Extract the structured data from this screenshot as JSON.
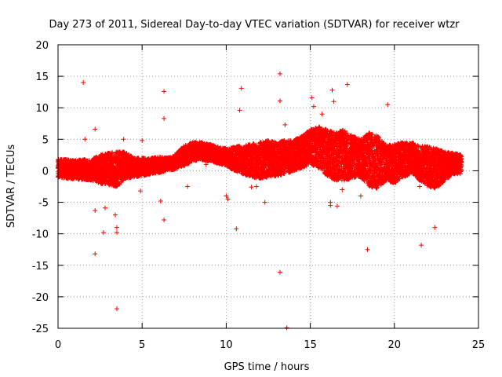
{
  "chart_data": {
    "type": "scatter",
    "title": "Day 273 of 2011, Sidereal Day-to-day VTEC variation (SDTVAR) for receiver wtzr",
    "xlabel": "GPS time / hours",
    "ylabel": "SDTVAR / TECUs",
    "xlim": [
      0,
      25
    ],
    "ylim": [
      -25,
      20
    ],
    "xticks": [
      0,
      5,
      10,
      15,
      20,
      25
    ],
    "yticks": [
      -25,
      -20,
      -15,
      -10,
      -5,
      0,
      5,
      10,
      15,
      20
    ],
    "xtick_labels": [
      "0",
      "5",
      "10",
      "15",
      "20",
      "25"
    ],
    "ytick_labels": [
      "-25",
      "-20",
      "-15",
      "-10",
      "-5",
      "0",
      "5",
      "10",
      "15",
      "20"
    ],
    "grid": true,
    "marker": "+",
    "series_color": "#ff0000",
    "series": [
      {
        "name": "SDTVAR",
        "note": "dense band ~-1.5..3 TECU from 0 to 24 h plus scattered outliers",
        "band": [
          [
            0.0,
            -1.0,
            1.8
          ],
          [
            0.5,
            -1.2,
            1.8
          ],
          [
            1.0,
            -1.3,
            1.6
          ],
          [
            1.5,
            -1.4,
            1.8
          ],
          [
            2.0,
            -1.5,
            1.8
          ],
          [
            2.5,
            -2.0,
            2.5
          ],
          [
            3.0,
            -2.2,
            2.8
          ],
          [
            3.5,
            -2.5,
            3.0
          ],
          [
            4.0,
            -1.2,
            3.0
          ],
          [
            4.5,
            -1.0,
            2.0
          ],
          [
            5.0,
            -0.8,
            2.0
          ],
          [
            5.5,
            -0.5,
            2.0
          ],
          [
            6.0,
            -0.3,
            2.2
          ],
          [
            6.5,
            0.0,
            2.0
          ],
          [
            7.0,
            0.3,
            2.6
          ],
          [
            7.5,
            0.8,
            4.0
          ],
          [
            8.0,
            1.5,
            4.5
          ],
          [
            8.5,
            1.8,
            4.5
          ],
          [
            9.0,
            1.5,
            4.2
          ],
          [
            9.5,
            1.2,
            3.8
          ],
          [
            10.0,
            0.8,
            3.5
          ],
          [
            10.5,
            0.0,
            3.8
          ],
          [
            11.0,
            -0.5,
            4.0
          ],
          [
            11.5,
            -1.0,
            4.2
          ],
          [
            12.0,
            -1.2,
            4.5
          ],
          [
            12.5,
            -1.0,
            4.8
          ],
          [
            13.0,
            -0.8,
            4.5
          ],
          [
            13.5,
            -0.5,
            4.8
          ],
          [
            14.0,
            0.0,
            4.8
          ],
          [
            14.5,
            0.5,
            5.5
          ],
          [
            15.0,
            1.0,
            6.5
          ],
          [
            15.5,
            0.5,
            7.0
          ],
          [
            16.0,
            -0.8,
            6.5
          ],
          [
            16.5,
            -1.5,
            6.0
          ],
          [
            17.0,
            -1.5,
            6.5
          ],
          [
            17.5,
            -1.2,
            5.5
          ],
          [
            18.0,
            -1.0,
            5.0
          ],
          [
            18.5,
            -2.5,
            6.0
          ],
          [
            19.0,
            -2.8,
            5.5
          ],
          [
            19.5,
            -1.5,
            4.0
          ],
          [
            20.0,
            -2.0,
            4.2
          ],
          [
            20.5,
            -1.0,
            4.5
          ],
          [
            21.0,
            -0.5,
            4.5
          ],
          [
            21.5,
            -1.5,
            4.0
          ],
          [
            22.0,
            -2.5,
            3.8
          ],
          [
            22.5,
            -2.8,
            3.5
          ],
          [
            23.0,
            -1.5,
            3.0
          ],
          [
            23.5,
            -0.5,
            2.8
          ],
          [
            24.0,
            -0.5,
            2.5
          ]
        ],
        "outliers": [
          [
            1.5,
            14.0
          ],
          [
            1.6,
            5.0
          ],
          [
            2.2,
            6.6
          ],
          [
            2.2,
            -6.3
          ],
          [
            2.2,
            -13.2
          ],
          [
            2.7,
            -9.8
          ],
          [
            2.8,
            -5.9
          ],
          [
            3.5,
            -21.9
          ],
          [
            3.4,
            -7.0
          ],
          [
            3.5,
            -9.0
          ],
          [
            3.5,
            -9.8
          ],
          [
            3.9,
            5.0
          ],
          [
            4.9,
            -3.2
          ],
          [
            5.0,
            4.8
          ],
          [
            6.1,
            -4.8
          ],
          [
            6.3,
            12.6
          ],
          [
            6.3,
            8.3
          ],
          [
            6.3,
            -7.8
          ],
          [
            7.7,
            -2.5
          ],
          [
            8.8,
            1.0
          ],
          [
            10.0,
            -4.0
          ],
          [
            10.1,
            -4.5
          ],
          [
            10.6,
            -9.2
          ],
          [
            10.8,
            9.6
          ],
          [
            10.9,
            13.1
          ],
          [
            11.5,
            -2.6
          ],
          [
            11.8,
            -2.5
          ],
          [
            12.3,
            -5.0
          ],
          [
            13.2,
            15.4
          ],
          [
            13.2,
            11.1
          ],
          [
            13.2,
            -16.1
          ],
          [
            13.5,
            7.3
          ],
          [
            13.6,
            -24.9
          ],
          [
            15.1,
            11.6
          ],
          [
            15.2,
            10.2
          ],
          [
            15.7,
            9.0
          ],
          [
            16.2,
            -5.0
          ],
          [
            16.2,
            -5.5
          ],
          [
            16.3,
            12.8
          ],
          [
            16.4,
            11.0
          ],
          [
            16.6,
            -5.6
          ],
          [
            16.9,
            -3.0
          ],
          [
            17.2,
            13.7
          ],
          [
            18.0,
            -4.0
          ],
          [
            18.4,
            -12.5
          ],
          [
            19.6,
            10.5
          ],
          [
            19.9,
            4.0
          ],
          [
            21.5,
            -2.5
          ],
          [
            21.6,
            -11.8
          ],
          [
            22.4,
            -9.0
          ]
        ]
      }
    ]
  }
}
